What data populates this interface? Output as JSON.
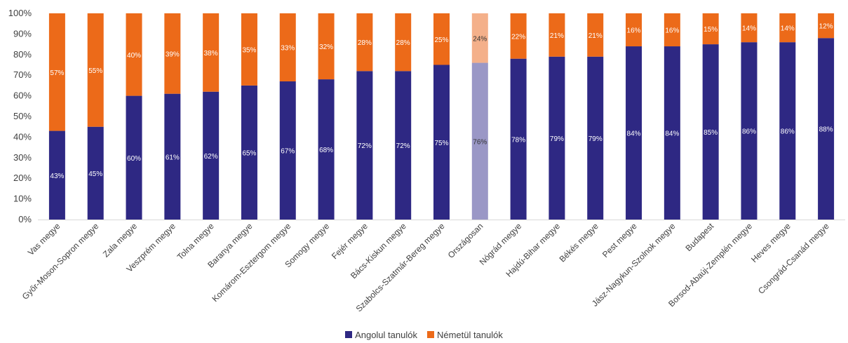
{
  "chart_data": {
    "type": "bar",
    "stacked": true,
    "percent": true,
    "categories": [
      "Vas megye",
      "Győr-Moson-Sopron megye",
      "Zala megye",
      "Veszprém megye",
      "Tolna megye",
      "Baranya megye",
      "Komárom-Esztergom megye",
      "Somogy megye",
      "Fejér megye",
      "Bács-Kiskun megye",
      "Szabolcs-Szatmár-Bereg megye",
      "Országosan",
      "Nógrád megye",
      "Hajdú-Bihar megye",
      "Békés megye",
      "Pest megye",
      "Jász-Nagykun-Szolnok megye",
      "Budapest",
      "Borsod-Abaúj-Zemplén megye",
      "Heves megye",
      "Csongrád-Csanád megye"
    ],
    "series": [
      {
        "name": "Angolul tanulók",
        "color": "#2e2883",
        "highlight_color": "#9a97c6",
        "values": [
          43,
          45,
          60,
          61,
          62,
          65,
          67,
          68,
          72,
          72,
          75,
          76,
          78,
          79,
          79,
          84,
          84,
          85,
          86,
          86,
          88
        ],
        "labels": [
          "43%",
          "45%",
          "60%",
          "61%",
          "62%",
          "65%",
          "67%",
          "68%",
          "72%",
          "72%",
          "75%",
          "76%",
          "78%",
          "79%",
          "79%",
          "84%",
          "84%",
          "85%",
          "86%",
          "86%",
          "88%"
        ]
      },
      {
        "name": "Németül tanulók",
        "color": "#ec6a19",
        "highlight_color": "#f4b08a",
        "values": [
          57,
          55,
          40,
          39,
          38,
          35,
          33,
          32,
          28,
          28,
          25,
          24,
          22,
          21,
          21,
          16,
          16,
          15,
          14,
          14,
          12
        ],
        "labels": [
          "57%",
          "55%",
          "40%",
          "39%",
          "38%",
          "35%",
          "33%",
          "32%",
          "28%",
          "28%",
          "25%",
          "24%",
          "22%",
          "21%",
          "21%",
          "16%",
          "16%",
          "15%",
          "14%",
          "14%",
          "12%"
        ]
      }
    ],
    "highlight_index": 11,
    "ylim": [
      0,
      100
    ],
    "yticks": [
      "0%",
      "10%",
      "20%",
      "30%",
      "40%",
      "50%",
      "60%",
      "70%",
      "80%",
      "90%",
      "100%"
    ],
    "title": "",
    "xlabel": "",
    "ylabel": "",
    "legend_position": "bottom",
    "grid": false
  }
}
